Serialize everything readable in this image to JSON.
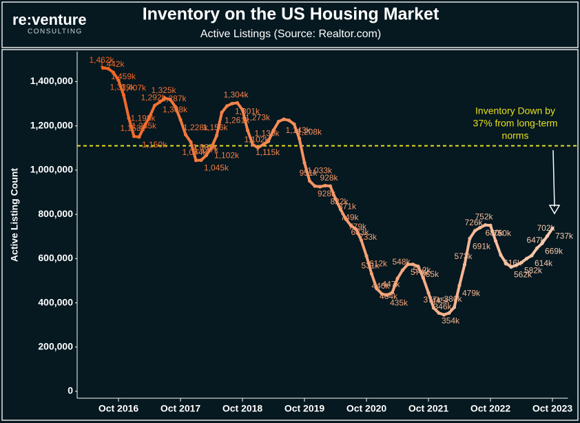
{
  "brand": {
    "name": "re:venture",
    "tagline": "CONSULTING"
  },
  "chart_data": {
    "type": "line",
    "title": "Inventory on the US Housing Market",
    "subtitle": "Active Listings (Source: Realtor.com)",
    "y_label": "Active Listing Count",
    "x": [
      "2016-07",
      "2016-08",
      "2016-09",
      "2016-10",
      "2016-11",
      "2016-12",
      "2017-01",
      "2017-02",
      "2017-03",
      "2017-04",
      "2017-05",
      "2017-06",
      "2017-07",
      "2017-08",
      "2017-09",
      "2017-10",
      "2017-11",
      "2017-12",
      "2018-01",
      "2018-02",
      "2018-03",
      "2018-04",
      "2018-05",
      "2018-06",
      "2018-07",
      "2018-08",
      "2018-09",
      "2018-10",
      "2018-11",
      "2018-12",
      "2019-01",
      "2019-02",
      "2019-03",
      "2019-04",
      "2019-05",
      "2019-06",
      "2019-07",
      "2019-08",
      "2019-09",
      "2019-10",
      "2019-11",
      "2019-12",
      "2020-01",
      "2020-02",
      "2020-03",
      "2020-04",
      "2020-05",
      "2020-06",
      "2020-07",
      "2020-08",
      "2020-09",
      "2020-10",
      "2020-11",
      "2020-12",
      "2021-01",
      "2021-02",
      "2021-03",
      "2021-04",
      "2021-05",
      "2021-06",
      "2021-07",
      "2021-08",
      "2021-09",
      "2021-10",
      "2021-11",
      "2021-12",
      "2022-01",
      "2022-02",
      "2022-03",
      "2022-04",
      "2022-05",
      "2022-06",
      "2022-07",
      "2022-08",
      "2022-09",
      "2022-10",
      "2022-11",
      "2022-12",
      "2023-01",
      "2023-02",
      "2023-03",
      "2023-04",
      "2023-05",
      "2023-06",
      "2023-07",
      "2023-08",
      "2023-09",
      "2023-10"
    ],
    "values": [
      1462000,
      1459000,
      1442000,
      1407000,
      1339000,
      1235000,
      1153000,
      1150000,
      1198000,
      1240000,
      1292000,
      1308000,
      1325000,
      1320000,
      1287000,
      1228000,
      1160000,
      1127000,
      1044000,
      1045000,
      1067000,
      1102000,
      1156000,
      1261000,
      1290000,
      1301000,
      1304000,
      1273000,
      1180000,
      1115000,
      1102000,
      1115000,
      1130000,
      1180000,
      1220000,
      1230000,
      1225000,
      1208000,
      1143000,
      1033000,
      951000,
      928000,
      925000,
      930000,
      928000,
      871000,
      822000,
      779000,
      749000,
      733000,
      683000,
      612000,
      531000,
      464000,
      440000,
      435000,
      447000,
      510000,
      548000,
      574000,
      574000,
      565000,
      512000,
      445000,
      377000,
      354000,
      346000,
      354000,
      380000,
      479000,
      573000,
      691000,
      726000,
      740000,
      752000,
      750000,
      680000,
      616000,
      580000,
      562000,
      570000,
      582000,
      600000,
      614000,
      647000,
      669000,
      702000,
      737000
    ],
    "value_labels": [
      "1,462k",
      "1,459k",
      "1,442k",
      "1,407k",
      "1,339k",
      "1,235k",
      "1,153k",
      "1,150k",
      "1,198k",
      null,
      "1,292k",
      "1,308k",
      "1,325k",
      null,
      "1,287k",
      "1,228k",
      null,
      "1,127k",
      "1,044k",
      "1,045k",
      "1,067k",
      "1,102k",
      "1,156k",
      "1,261k",
      null,
      "1,301k",
      "1,304k",
      "1,273k",
      null,
      "1,115k",
      "1,102k",
      null,
      "1,130k",
      null,
      null,
      null,
      null,
      "1,208k",
      "1,143k",
      "1,033k",
      "951k",
      "928k",
      null,
      null,
      "928k",
      "871k",
      "822k",
      "779k",
      "749k",
      "733k",
      "683k",
      "612k",
      "531k",
      "464k",
      "440k",
      "435k",
      "447k",
      null,
      "548k",
      "574k",
      null,
      "565k",
      "512k",
      "445k",
      "377k",
      "354k",
      "346k",
      null,
      "380k",
      "479k",
      "573k",
      "691k",
      "726k",
      null,
      "752k",
      "750k",
      "680k",
      "616k",
      null,
      "562k",
      null,
      "582k",
      null,
      "614k",
      "647k",
      "669k",
      "702k",
      "737k"
    ],
    "color_start": "#f26522",
    "color_end": "#f6cbb0",
    "xlim": [
      "2016-02",
      "2024-01"
    ],
    "xticks": [
      {
        "value": "2016-10",
        "label": "Oct 2016"
      },
      {
        "value": "2017-10",
        "label": "Oct 2017"
      },
      {
        "value": "2018-10",
        "label": "Oct 2018"
      },
      {
        "value": "2019-10",
        "label": "Oct 2019"
      },
      {
        "value": "2020-10",
        "label": "Oct 2020"
      },
      {
        "value": "2021-10",
        "label": "Oct 2021"
      },
      {
        "value": "2022-10",
        "label": "Oct 2022"
      },
      {
        "value": "2023-10",
        "label": "Oct 2023"
      }
    ],
    "ylim": [
      0,
      1520000
    ],
    "yticks": [
      0,
      {
        "value": 200000,
        "label": "200,000"
      },
      {
        "value": 400000,
        "label": "400,000"
      },
      {
        "value": 600000,
        "label": "600,000"
      },
      {
        "value": 800000,
        "label": "800,000"
      },
      {
        "value": 1000000,
        "label": "1,000,000"
      },
      {
        "value": 1200000,
        "label": "1,200,000"
      },
      {
        "value": 1400000,
        "label": "1,400,000"
      }
    ],
    "reference_line": {
      "value": 1110000,
      "color": "#e6e01e"
    },
    "annotation": [
      "Inventory Down by",
      "37% from long-term",
      "norms"
    ]
  }
}
